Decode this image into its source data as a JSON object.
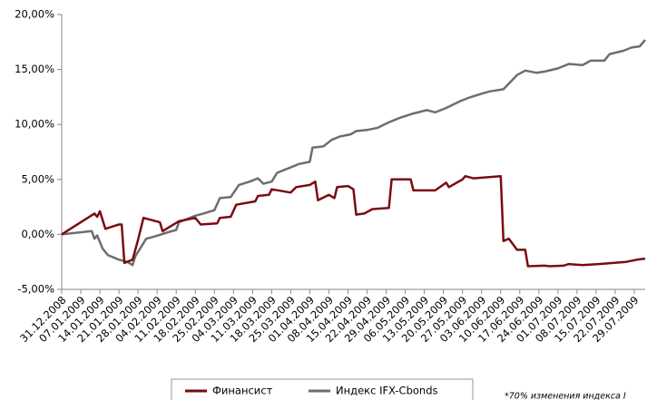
{
  "chart_data": {
    "type": "line",
    "ylim": [
      -5,
      20
    ],
    "yticks": [
      {
        "value": -5,
        "label": "-5,00%"
      },
      {
        "value": 0,
        "label": "0,00%"
      },
      {
        "value": 5,
        "label": "5,00%"
      },
      {
        "value": 10,
        "label": "10,00%"
      },
      {
        "value": 15,
        "label": "15,00%"
      },
      {
        "value": 20,
        "label": "20,00%"
      }
    ],
    "xlim": [
      "31.12.2008",
      "02.08.2009"
    ],
    "xticks": [
      "31.12.2008",
      "07.01.2009",
      "14.01.2009",
      "21.01.2009",
      "28.01.2009",
      "04.02.2009",
      "11.02.2009",
      "18.02.2009",
      "25.02.2009",
      "04.03.2009",
      "11.03.2009",
      "18.03.2009",
      "25.03.2009",
      "01.04.2009",
      "08.04.2009",
      "15.04.2009",
      "22.04.2009",
      "29.04.2009",
      "06.05.2009",
      "13.05.2009",
      "20.05.2009",
      "27.05.2009",
      "03.06.2009",
      "10.06.2009",
      "17.06.2009",
      "24.06.2009",
      "01.07.2009",
      "08.07.2009",
      "15.07.2009",
      "22.07.2009",
      "29.07.2009"
    ],
    "grid": false,
    "legend": "bottom",
    "footnote": "*70% изменения индекса I",
    "series": [
      {
        "name": "Финансист",
        "color": "#7a0c10",
        "x": [
          "31.12.2008",
          "12.01.2009",
          "13.01.2009",
          "14.01.2009",
          "16.01.2009",
          "21.01.2009",
          "22.01.2009",
          "23.01.2009",
          "26.01.2009",
          "28.01.2009",
          "30.01.2009",
          "05.02.2009",
          "06.02.2009",
          "12.02.2009",
          "18.02.2009",
          "20.02.2009",
          "26.02.2009",
          "27.02.2009",
          "03.03.2009",
          "05.03.2009",
          "12.03.2009",
          "13.03.2009",
          "17.03.2009",
          "18.03.2009",
          "25.03.2009",
          "27.03.2009",
          "01.04.2009",
          "03.04.2009",
          "04.04.2009",
          "08.04.2009",
          "10.04.2009",
          "11.04.2009",
          "15.04.2009",
          "17.04.2009",
          "18.04.2009",
          "21.04.2009",
          "24.04.2009",
          "30.04.2009",
          "01.05.2009",
          "08.05.2009",
          "09.05.2009",
          "17.05.2009",
          "21.05.2009",
          "22.05.2009",
          "27.05.2009",
          "28.05.2009",
          "31.05.2009",
          "10.06.2009",
          "11.06.2009",
          "13.06.2009",
          "16.06.2009",
          "19.06.2009",
          "20.06.2009",
          "26.06.2009",
          "28.06.2009",
          "03.07.2009",
          "05.07.2009",
          "10.07.2009",
          "16.07.2009",
          "26.07.2009",
          "30.07.2009",
          "02.08.2009"
        ],
        "values": [
          0,
          1.9,
          1.6,
          2.1,
          0.5,
          0.9,
          0.9,
          -2.6,
          -2.3,
          -0.5,
          1.5,
          1.1,
          0.3,
          1.2,
          1.5,
          0.9,
          1.0,
          1.5,
          1.6,
          2.7,
          3.0,
          3.5,
          3.6,
          4.1,
          3.8,
          4.3,
          4.5,
          4.8,
          3.1,
          3.6,
          3.3,
          4.3,
          4.4,
          4.1,
          1.8,
          1.9,
          2.3,
          2.4,
          5.0,
          5.0,
          4.0,
          4.0,
          4.7,
          4.3,
          5.0,
          5.3,
          5.1,
          5.3,
          -0.6,
          -0.4,
          -1.4,
          -1.4,
          -2.9,
          -2.85,
          -2.9,
          -2.85,
          -2.7,
          -2.8,
          -2.7,
          -2.5,
          -2.3,
          -2.2
        ]
      },
      {
        "name": "Индекс IFX-Cbonds",
        "color": "#6e6e6e",
        "x": [
          "31.12.2008",
          "11.01.2009",
          "12.01.2009",
          "13.01.2009",
          "15.01.2009",
          "17.01.2009",
          "21.01.2009",
          "24.01.2009",
          "26.01.2009",
          "27.01.2009",
          "31.01.2009",
          "03.02.2009",
          "08.02.2009",
          "11.02.2009",
          "12.02.2009",
          "15.02.2009",
          "18.02.2009",
          "21.02.2009",
          "25.02.2009",
          "27.02.2009",
          "03.03.2009",
          "06.03.2009",
          "10.03.2009",
          "13.03.2009",
          "15.03.2009",
          "18.03.2009",
          "20.03.2009",
          "24.03.2009",
          "26.03.2009",
          "28.03.2009",
          "01.04.2009",
          "02.04.2009",
          "06.04.2009",
          "09.04.2009",
          "12.04.2009",
          "16.04.2009",
          "18.04.2009",
          "22.04.2009",
          "26.04.2009",
          "30.04.2009",
          "04.05.2009",
          "09.05.2009",
          "14.05.2009",
          "17.05.2009",
          "21.05.2009",
          "26.05.2009",
          "29.05.2009",
          "03.06.2009",
          "06.06.2009",
          "11.06.2009",
          "16.06.2009",
          "19.06.2009",
          "23.06.2009",
          "26.06.2009",
          "01.07.2009",
          "05.07.2009",
          "10.07.2009",
          "13.07.2009",
          "18.07.2009",
          "20.07.2009",
          "25.07.2009",
          "28.07.2009",
          "31.07.2009",
          "02.08.2009"
        ],
        "values": [
          0,
          0.3,
          -0.4,
          -0.1,
          -1.3,
          -1.9,
          -2.3,
          -2.5,
          -2.8,
          -2.0,
          -0.4,
          -0.2,
          0.2,
          0.4,
          1.1,
          1.4,
          1.7,
          1.9,
          2.2,
          3.3,
          3.4,
          4.5,
          4.8,
          5.1,
          4.6,
          4.8,
          5.6,
          6.0,
          6.2,
          6.4,
          6.6,
          7.9,
          8.0,
          8.6,
          8.9,
          9.1,
          9.4,
          9.5,
          9.7,
          10.2,
          10.6,
          11.0,
          11.3,
          11.1,
          11.5,
          12.1,
          12.4,
          12.8,
          13.0,
          13.2,
          14.5,
          14.9,
          14.7,
          14.8,
          15.1,
          15.5,
          15.4,
          15.8,
          15.8,
          16.4,
          16.7,
          17.0,
          17.1,
          17.7
        ]
      }
    ]
  }
}
